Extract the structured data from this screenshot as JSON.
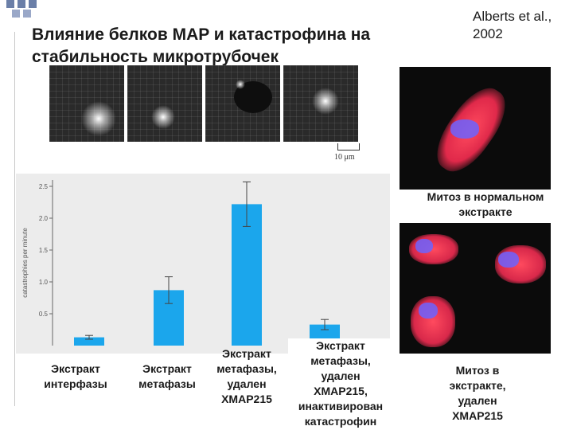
{
  "slide": {
    "title": "Влияние белков MAP и катастрофина на стабильность микротрубочек",
    "citation": "Alberts et al., 2002"
  },
  "micrographs": {
    "scale_label": "10 μm"
  },
  "chart_data": {
    "type": "bar",
    "ylabel": "catastrophies per minute",
    "ylim": [
      0,
      2.6
    ],
    "yticks": [
      "0.5",
      "1.0",
      "1.5",
      "2.0",
      "2.5"
    ],
    "categories": [
      "Экстракт интерфазы",
      "Экстракт метафазы",
      "Экстракт метафазы, удален XMAP215",
      "Экстракт метафазы, удален XMAP215, инактивирован катастрофин"
    ],
    "values": [
      0.13,
      0.87,
      2.22,
      0.33
    ],
    "errors": [
      0.03,
      0.21,
      0.35,
      0.08
    ],
    "bar_color": "#1ba6ec"
  },
  "conditions": [
    {
      "label_l1": "Экстракт",
      "label_l2": "интерфазы"
    },
    {
      "label_l1": "Экстракт",
      "label_l2": "метафазы"
    },
    {
      "label_l1": "Экстракт",
      "label_l2": "метафазы,",
      "label_l3": "удален",
      "label_l4": "XMAP215"
    },
    {
      "label_l1": "Экстракт",
      "label_l2": "метафазы,",
      "label_l3": "удален",
      "label_l4": "XMAP215,",
      "label_l5": "инактивирован",
      "label_l6": "катастрофин"
    }
  ],
  "photos": {
    "normal_caption_l1": "Митоз в нормальном",
    "normal_caption_l2": "экстракте",
    "depleted_caption_l1": "Митоз в",
    "depleted_caption_l2": "экстракте,",
    "depleted_caption_l3": "удален",
    "depleted_caption_l4": "XMAP215"
  }
}
